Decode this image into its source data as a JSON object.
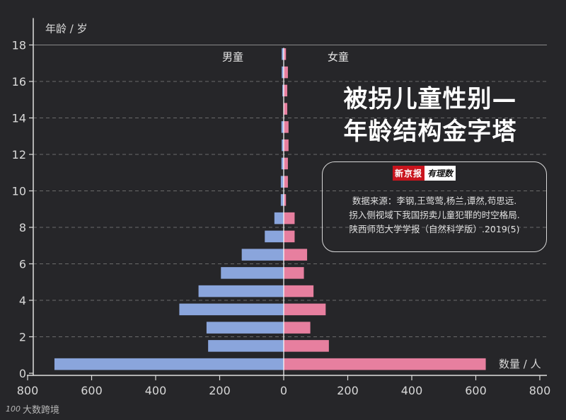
{
  "chart_data": {
    "type": "bar",
    "orientation": "horizontal-population-pyramid",
    "title_lines": [
      "被拐儿童性别—",
      "年龄结构金字塔"
    ],
    "ylabel": "年龄 / 岁",
    "xlabel": "数量 / 人",
    "ylim": [
      0,
      18
    ],
    "xlim": [
      -800,
      800
    ],
    "y_ticks": [
      0,
      2,
      4,
      6,
      8,
      10,
      12,
      14,
      16,
      18
    ],
    "x_ticks": [
      -800,
      -600,
      -400,
      -200,
      0,
      200,
      400,
      600,
      800
    ],
    "x_tick_labels": [
      "800",
      "600",
      "400",
      "200",
      "0",
      "200",
      "400",
      "600",
      "800"
    ],
    "grid": "horizontal dashed",
    "ages": [
      0.5,
      1.5,
      2.5,
      3.5,
      4.5,
      5.5,
      6.5,
      7.5,
      8.5,
      9.5,
      10.5,
      11.5,
      12.5,
      13.5,
      14.5,
      15.5,
      16.5,
      17.5
    ],
    "series": [
      {
        "name": "男童",
        "color": "#8aa5dc",
        "side": "left",
        "values": [
          715,
          235,
          240,
          325,
          265,
          195,
          130,
          58,
          28,
          8,
          8,
          6,
          5,
          6,
          0,
          3,
          5,
          5
        ]
      },
      {
        "name": "女童",
        "color": "#e77f9f",
        "side": "right",
        "values": [
          630,
          140,
          82,
          130,
          92,
          62,
          72,
          33,
          33,
          6,
          12,
          12,
          14,
          14,
          10,
          10,
          12,
          6
        ]
      }
    ]
  },
  "source_box": {
    "logo_left": "新京报",
    "logo_right": "有理数",
    "lines": [
      "数据来源：李钢,王莺莺,杨兰,谭然,苟思远.",
      "拐入侧视域下我国拐卖儿童犯罪的时空格局.",
      "陕西师范大学学报（自然科学版）.2019(5)"
    ]
  },
  "watermark": {
    "mark": "100",
    "text": "大数跨境"
  }
}
